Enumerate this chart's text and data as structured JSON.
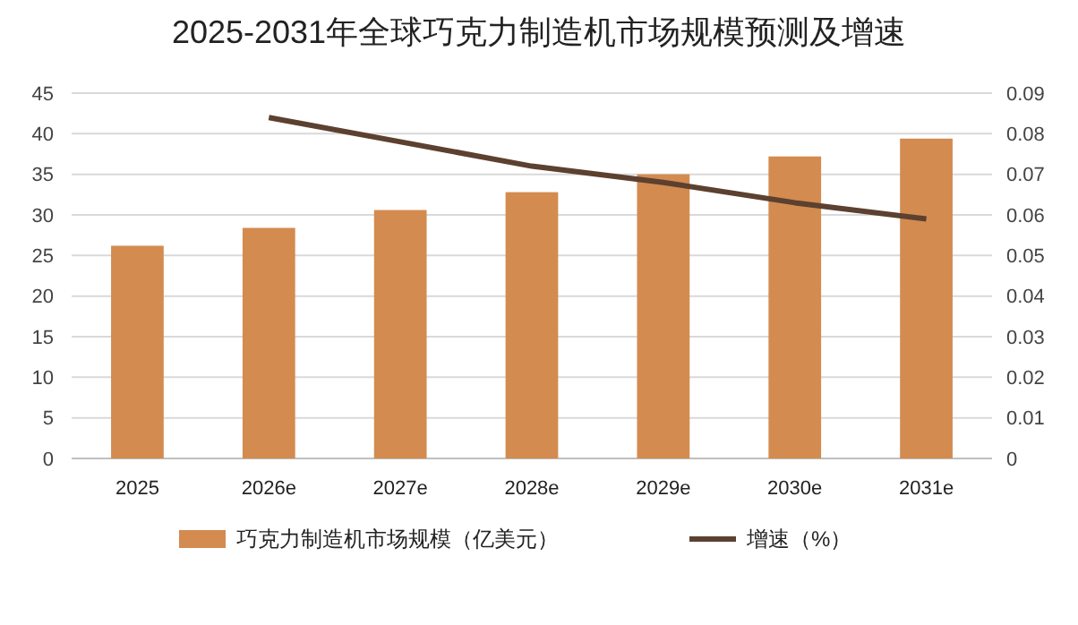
{
  "chart_data": {
    "type": "bar",
    "title": "2025-2031年全球巧克力制造机市场规模预测及增速",
    "categories": [
      "2025",
      "2026e",
      "2027e",
      "2028e",
      "2029e",
      "2030e",
      "2031e"
    ],
    "series": [
      {
        "name": "巧克力制造机市场规模（亿美元）",
        "color": "#d38b4f",
        "values": [
          26.2,
          28.4,
          30.6,
          32.8,
          35.0,
          37.2,
          39.4
        ]
      },
      {
        "name": "增速（%）",
        "type": "line",
        "axis": "y2",
        "color": "#5c4030",
        "values": [
          null,
          0.084,
          0.078,
          0.072,
          0.068,
          0.063,
          0.059
        ]
      }
    ],
    "ylim": [
      0,
      45
    ],
    "yticks": [
      0,
      5,
      10,
      15,
      20,
      25,
      30,
      35,
      40,
      45
    ],
    "y2lim": [
      0,
      0.09
    ],
    "y2ticks": [
      0,
      0.01,
      0.02,
      0.03,
      0.04,
      0.05,
      0.06,
      0.07,
      0.08,
      0.09
    ],
    "grid": "y",
    "legend": "bottom",
    "marker": "none",
    "line_style": "solid"
  }
}
